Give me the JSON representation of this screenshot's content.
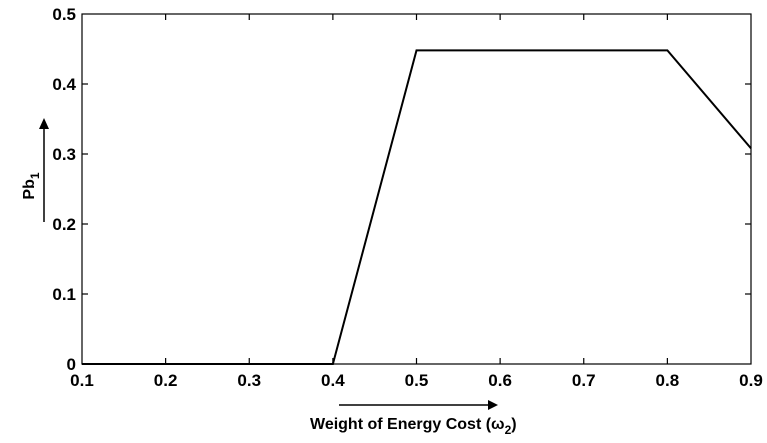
{
  "chart_data": {
    "type": "line",
    "title": "",
    "xlabel": "Weight of Energy Cost (ω",
    "xlabel_sub": "2",
    "xlabel_end": ")",
    "ylabel": "Pb",
    "ylabel_sub": "1",
    "xlim": [
      0.1,
      0.9
    ],
    "ylim": [
      0,
      0.5
    ],
    "xticks": [
      "0.1",
      "0.2",
      "0.3",
      "0.4",
      "0.5",
      "0.6",
      "0.7",
      "0.8",
      "0.9"
    ],
    "yticks": [
      "0",
      "0.1",
      "0.2",
      "0.3",
      "0.4",
      "0.5"
    ],
    "grid": false,
    "series": [
      {
        "x": [
          0.1,
          0.2,
          0.3,
          0.4,
          0.5,
          0.6,
          0.7,
          0.8,
          0.9
        ],
        "y": [
          0,
          0,
          0,
          0,
          0.448,
          0.448,
          0.448,
          0.448,
          0.308
        ]
      }
    ],
    "colors": {
      "line": "#000000",
      "axes": "#000000"
    }
  }
}
